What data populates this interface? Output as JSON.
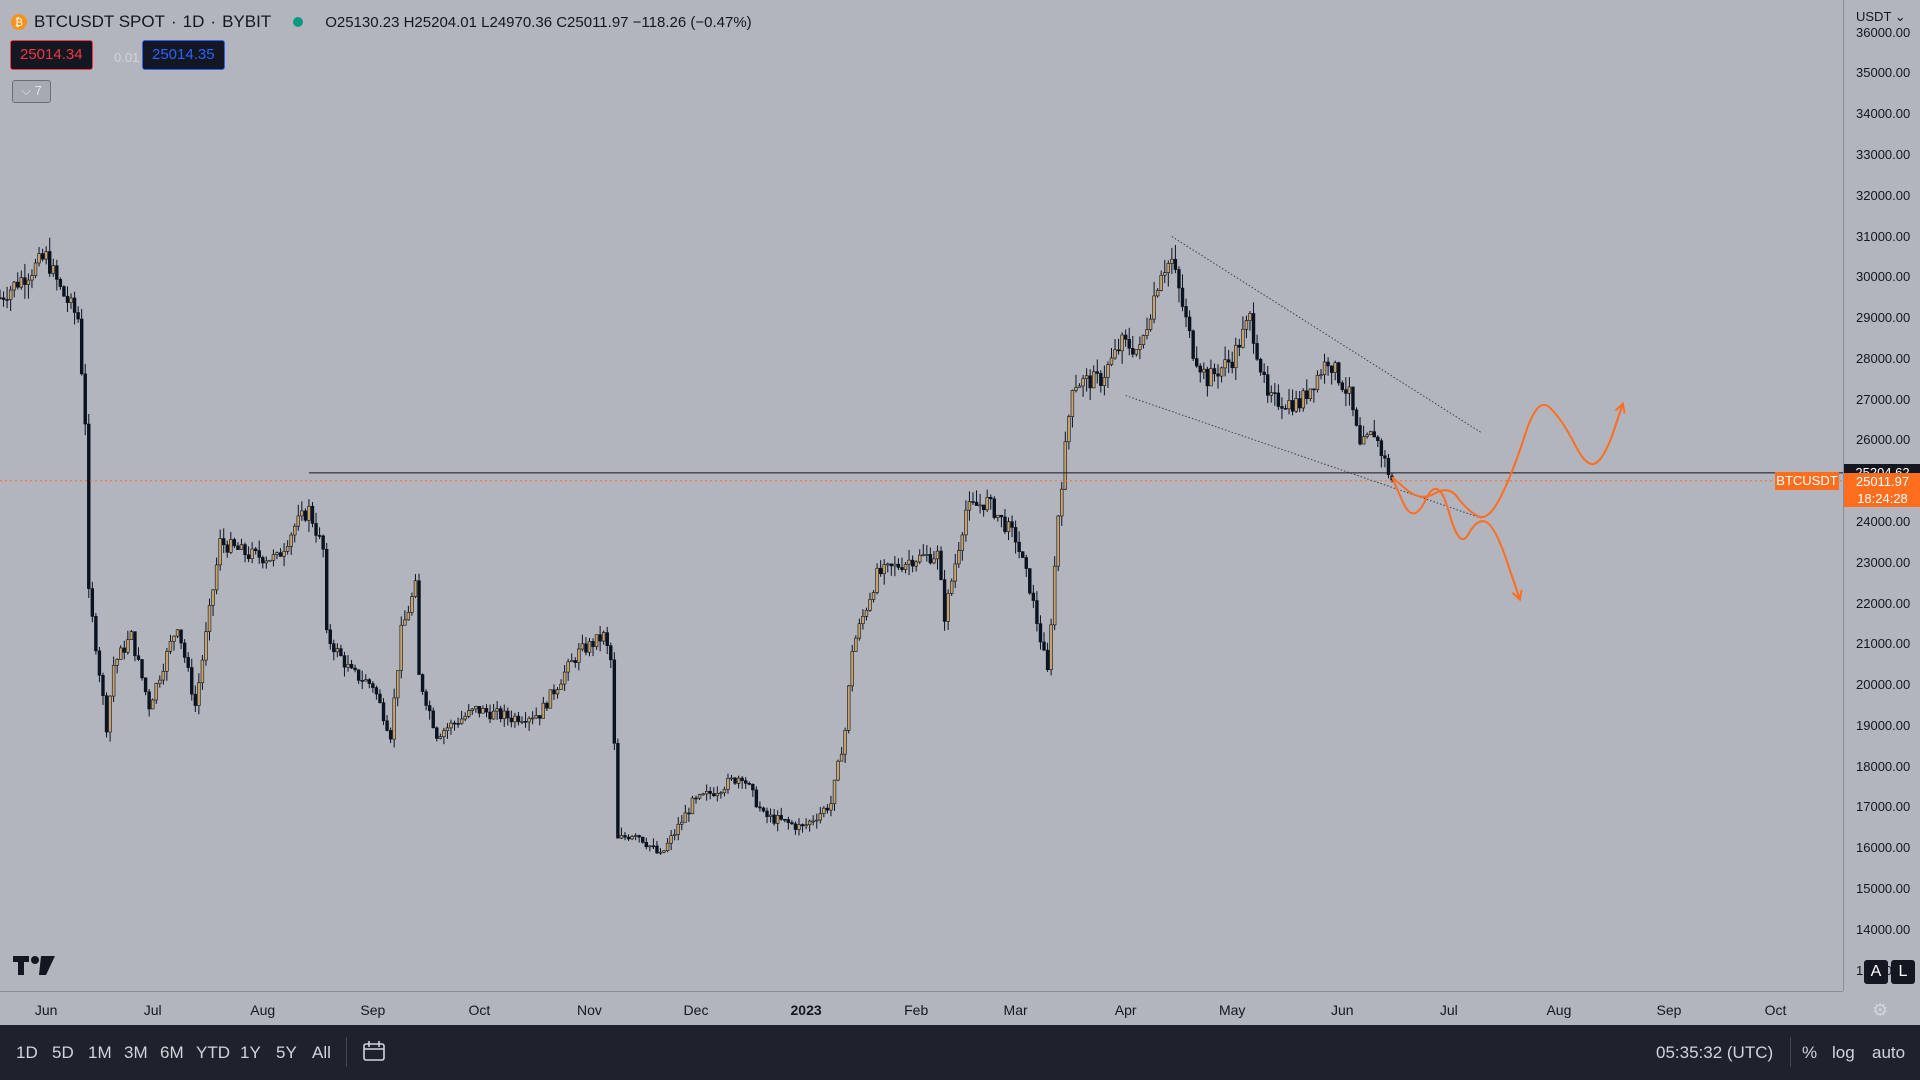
{
  "legend": {
    "symbol": "BTCUSDT SPOT",
    "interval": "1D",
    "exchange": "BYBIT",
    "ohlc": "O25130.23 H25204.01 L24970.36 C25011.97 −118.26 (−0.47%)"
  },
  "order": {
    "bid": "25014.34",
    "spread": "0.01",
    "ask": "25014.35"
  },
  "indicators_toggle": "⌵ 7",
  "price_axis": {
    "currency": "USDT",
    "ticks": [
      "36000.00",
      "35000.00",
      "34000.00",
      "33000.00",
      "32000.00",
      "31000.00",
      "30000.00",
      "29000.00",
      "28000.00",
      "27000.00",
      "26000.00",
      "24000.00",
      "23000.00",
      "22000.00",
      "21000.00",
      "20000.00",
      "19000.00",
      "18000.00",
      "17000.00",
      "16000.00",
      "15000.00",
      "14000.00",
      "13000.00"
    ],
    "high_tag": "25204.62",
    "symbol_tag": "BTCUSDT",
    "last_price": "25011.97",
    "countdown": "18:24:28",
    "btn_auto": "A",
    "btn_log": "L"
  },
  "time_axis": {
    "ticks": [
      {
        "label": "Jun",
        "date": "2022-06-01",
        "bold": false
      },
      {
        "label": "Jul",
        "date": "2022-07-01",
        "bold": false
      },
      {
        "label": "Aug",
        "date": "2022-08-01",
        "bold": false
      },
      {
        "label": "Sep",
        "date": "2022-09-01",
        "bold": false
      },
      {
        "label": "Oct",
        "date": "2022-10-01",
        "bold": false
      },
      {
        "label": "Nov",
        "date": "2022-11-01",
        "bold": false
      },
      {
        "label": "Dec",
        "date": "2022-12-01",
        "bold": false
      },
      {
        "label": "2023",
        "date": "2023-01-01",
        "bold": true
      },
      {
        "label": "Feb",
        "date": "2023-02-01",
        "bold": false
      },
      {
        "label": "Mar",
        "date": "2023-03-01",
        "bold": false
      },
      {
        "label": "Apr",
        "date": "2023-04-01",
        "bold": false
      },
      {
        "label": "May",
        "date": "2023-05-01",
        "bold": false
      },
      {
        "label": "Jun",
        "date": "2023-06-01",
        "bold": false
      },
      {
        "label": "Jul",
        "date": "2023-07-01",
        "bold": false
      },
      {
        "label": "Aug",
        "date": "2023-08-01",
        "bold": false
      },
      {
        "label": "Sep",
        "date": "2023-09-01",
        "bold": false
      },
      {
        "label": "Oct",
        "date": "2023-10-01",
        "bold": false
      }
    ]
  },
  "bottom_bar": {
    "ranges": [
      "1D",
      "5D",
      "1M",
      "3M",
      "6M",
      "YTD",
      "1Y",
      "5Y",
      "All"
    ],
    "clock": "05:35:32 (UTC)",
    "percent": "%",
    "log": "log",
    "auto": "auto"
  },
  "colors": {
    "background": "#b2b5be",
    "candle": "#0b1220",
    "up_wick_fill": "#c8a46a",
    "forecast": "#ff6d1f",
    "last_price_line": "#ff6d1f"
  },
  "chart_data": {
    "type": "candlestick",
    "title": "BTCUSDT SPOT · 1D · BYBIT",
    "y_range": [
      12500,
      36800
    ],
    "x_range": [
      "2022-05-19",
      "2023-10-20"
    ],
    "candle_path": [
      [
        "2022-05-19",
        29500
      ],
      [
        "2022-06-01",
        30500
      ],
      [
        "2022-06-05",
        29700
      ],
      [
        "2022-06-10",
        29000
      ],
      [
        "2022-06-12",
        26500
      ],
      [
        "2022-06-13",
        22200
      ],
      [
        "2022-06-15",
        21000
      ],
      [
        "2022-06-18",
        19000
      ],
      [
        "2022-06-20",
        20500
      ],
      [
        "2022-06-25",
        21200
      ],
      [
        "2022-06-30",
        19500
      ],
      [
        "2022-07-08",
        21500
      ],
      [
        "2022-07-13",
        19500
      ],
      [
        "2022-07-20",
        23500
      ],
      [
        "2022-07-28",
        23200
      ],
      [
        "2022-08-05",
        23100
      ],
      [
        "2022-08-10",
        23900
      ],
      [
        "2022-08-14",
        24300
      ],
      [
        "2022-08-18",
        23300
      ],
      [
        "2022-08-19",
        21200
      ],
      [
        "2022-08-26",
        20300
      ],
      [
        "2022-09-01",
        20000
      ],
      [
        "2022-09-06",
        18800
      ],
      [
        "2022-09-09",
        21300
      ],
      [
        "2022-09-13",
        22400
      ],
      [
        "2022-09-14",
        20200
      ],
      [
        "2022-09-19",
        18800
      ],
      [
        "2022-09-30",
        19400
      ],
      [
        "2022-10-10",
        19200
      ],
      [
        "2022-10-18",
        19300
      ],
      [
        "2022-10-25",
        20300
      ],
      [
        "2022-10-29",
        20800
      ],
      [
        "2022-11-05",
        21200
      ],
      [
        "2022-11-07",
        20600
      ],
      [
        "2022-11-08",
        18500
      ],
      [
        "2022-11-09",
        16200
      ],
      [
        "2022-11-14",
        16400
      ],
      [
        "2022-11-21",
        15800
      ],
      [
        "2022-11-30",
        17100
      ],
      [
        "2022-12-14",
        17800
      ],
      [
        "2022-12-20",
        16800
      ],
      [
        "2022-12-31",
        16500
      ],
      [
        "2023-01-08",
        17100
      ],
      [
        "2023-01-12",
        18900
      ],
      [
        "2023-01-14",
        20900
      ],
      [
        "2023-01-21",
        22700
      ],
      [
        "2023-01-31",
        23100
      ],
      [
        "2023-02-07",
        23200
      ],
      [
        "2023-02-09",
        21700
      ],
      [
        "2023-02-15",
        24300
      ],
      [
        "2023-02-21",
        24500
      ],
      [
        "2023-03-01",
        23600
      ],
      [
        "2023-03-05",
        22400
      ],
      [
        "2023-03-10",
        20300
      ],
      [
        "2023-03-13",
        24200
      ],
      [
        "2023-03-17",
        27400
      ],
      [
        "2023-03-25",
        27500
      ],
      [
        "2023-03-31",
        28400
      ],
      [
        "2023-04-05",
        28200
      ],
      [
        "2023-04-11",
        30200
      ],
      [
        "2023-04-14",
        30400
      ],
      [
        "2023-04-20",
        28200
      ],
      [
        "2023-04-24",
        27500
      ],
      [
        "2023-05-01",
        28000
      ],
      [
        "2023-05-06",
        29000
      ],
      [
        "2023-05-11",
        27000
      ],
      [
        "2023-05-20",
        26900
      ],
      [
        "2023-05-28",
        28000
      ],
      [
        "2023-06-03",
        27100
      ],
      [
        "2023-06-06",
        25800
      ],
      [
        "2023-06-10",
        26200
      ],
      [
        "2023-06-15",
        25000
      ]
    ],
    "last_candle": {
      "date": "2023-06-15",
      "open": 25130.23,
      "high": 25204.01,
      "low": 24970.36,
      "close": 25011.97,
      "change": -118.26,
      "change_pct": -0.47
    },
    "annotations": {
      "horizontal_line": {
        "price": 25204.62,
        "from": "2022-08-14"
      },
      "wedge_upper": [
        [
          "2023-04-14",
          31000
        ],
        [
          "2023-07-10",
          26200
        ]
      ],
      "wedge_lower": [
        [
          "2023-04-01",
          27100
        ],
        [
          "2023-07-10",
          24100
        ]
      ],
      "forecast_bear": [
        [
          "2023-06-15",
          25100
        ],
        [
          "2023-06-21",
          23900
        ],
        [
          "2023-06-28",
          25200
        ],
        [
          "2023-07-04",
          23300
        ],
        [
          "2023-07-09",
          24100
        ],
        [
          "2023-07-14",
          23900
        ],
        [
          "2023-07-21",
          22100
        ]
      ],
      "forecast_bull": [
        [
          "2023-06-15",
          25100
        ],
        [
          "2023-06-23",
          24500
        ],
        [
          "2023-07-01",
          24900
        ],
        [
          "2023-07-06",
          24300
        ],
        [
          "2023-07-12",
          24000
        ],
        [
          "2023-07-19",
          25200
        ],
        [
          "2023-07-26",
          27100
        ],
        [
          "2023-08-02",
          26500
        ],
        [
          "2023-08-09",
          25300
        ],
        [
          "2023-08-14",
          25600
        ],
        [
          "2023-08-19",
          26900
        ]
      ]
    }
  }
}
